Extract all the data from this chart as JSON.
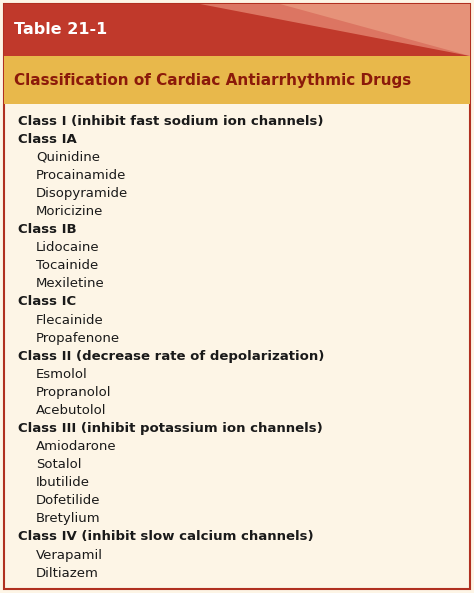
{
  "table_title": "Table 21-1",
  "subtitle": "Classification of Cardiac Antiarrhythmic Drugs",
  "header_bg": "#c0392b",
  "header_text_color": "#ffffff",
  "subheader_bg": "#e8b84b",
  "body_bg": "#fdf5e6",
  "border_color": "#b03020",
  "title_fontsize": 11.5,
  "subtitle_fontsize": 11.0,
  "body_fontsize": 9.5,
  "content": [
    {
      "text": "Class I (inhibit fast sodium ion channels)",
      "bold": true,
      "indent": 0
    },
    {
      "text": "Class IA",
      "bold": true,
      "indent": 0
    },
    {
      "text": "Quinidine",
      "bold": false,
      "indent": 1
    },
    {
      "text": "Procainamide",
      "bold": false,
      "indent": 1
    },
    {
      "text": "Disopyramide",
      "bold": false,
      "indent": 1
    },
    {
      "text": "Moricizine",
      "bold": false,
      "indent": 1
    },
    {
      "text": "Class IB",
      "bold": true,
      "indent": 0
    },
    {
      "text": "Lidocaine",
      "bold": false,
      "indent": 1
    },
    {
      "text": "Tocainide",
      "bold": false,
      "indent": 1
    },
    {
      "text": "Mexiletine",
      "bold": false,
      "indent": 1
    },
    {
      "text": "Class IC",
      "bold": true,
      "indent": 0
    },
    {
      "text": "Flecainide",
      "bold": false,
      "indent": 1
    },
    {
      "text": "Propafenone",
      "bold": false,
      "indent": 1
    },
    {
      "text": "Class II (decrease rate of depolarization)",
      "bold": true,
      "indent": 0
    },
    {
      "text": "Esmolol",
      "bold": false,
      "indent": 1
    },
    {
      "text": "Propranolol",
      "bold": false,
      "indent": 1
    },
    {
      "text": "Acebutolol",
      "bold": false,
      "indent": 1
    },
    {
      "text": "Class III (inhibit potassium ion channels)",
      "bold": true,
      "indent": 0
    },
    {
      "text": "Amiodarone",
      "bold": false,
      "indent": 1
    },
    {
      "text": "Sotalol",
      "bold": false,
      "indent": 1
    },
    {
      "text": "Ibutilide",
      "bold": false,
      "indent": 1
    },
    {
      "text": "Dofetilide",
      "bold": false,
      "indent": 1
    },
    {
      "text": "Bretylium",
      "bold": false,
      "indent": 1
    },
    {
      "text": "Class IV (inhibit slow calcium channels)",
      "bold": true,
      "indent": 0
    },
    {
      "text": "Verapamil",
      "bold": false,
      "indent": 1
    },
    {
      "text": "Diltiazem",
      "bold": false,
      "indent": 1
    }
  ]
}
